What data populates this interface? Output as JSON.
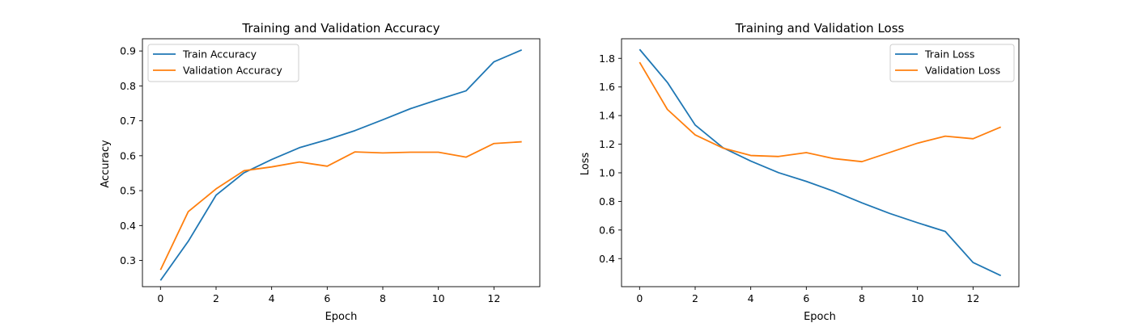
{
  "colors": {
    "train": "#1f77b4",
    "validation": "#ff7f0e"
  },
  "chart_data": [
    {
      "type": "line",
      "title": "Training and Validation Accuracy",
      "xlabel": "Epoch",
      "ylabel": "Accuracy",
      "xlim": [
        -0.65,
        13.65
      ],
      "ylim": [
        0.225,
        0.935
      ],
      "xticks": [
        0,
        2,
        4,
        6,
        8,
        10,
        12
      ],
      "xtick_labels": [
        "0",
        "2",
        "4",
        "6",
        "8",
        "10",
        "12"
      ],
      "yticks": [
        0.3,
        0.4,
        0.5,
        0.6,
        0.7,
        0.8,
        0.9
      ],
      "ytick_labels": [
        "0.3",
        "0.4",
        "0.5",
        "0.6",
        "0.7",
        "0.8",
        "0.9"
      ],
      "legend_position": "upper-left",
      "x": [
        0,
        1,
        2,
        3,
        4,
        5,
        6,
        7,
        8,
        9,
        10,
        11,
        12,
        13
      ],
      "series": [
        {
          "name": "Train Accuracy",
          "color_key": "train",
          "values": [
            0.243,
            0.355,
            0.487,
            0.551,
            0.589,
            0.623,
            0.646,
            0.672,
            0.703,
            0.735,
            0.761,
            0.786,
            0.869,
            0.903
          ]
        },
        {
          "name": "Validation Accuracy",
          "color_key": "validation",
          "values": [
            0.273,
            0.44,
            0.505,
            0.557,
            0.568,
            0.582,
            0.57,
            0.611,
            0.608,
            0.61,
            0.61,
            0.596,
            0.635,
            0.64
          ]
        }
      ]
    },
    {
      "type": "line",
      "title": "Training and Validation Loss",
      "xlabel": "Epoch",
      "ylabel": "Loss",
      "xlim": [
        -0.65,
        13.65
      ],
      "ylim": [
        0.204,
        1.937
      ],
      "xticks": [
        0,
        2,
        4,
        6,
        8,
        10,
        12
      ],
      "xtick_labels": [
        "0",
        "2",
        "4",
        "6",
        "8",
        "10",
        "12"
      ],
      "yticks": [
        0.4,
        0.6,
        0.8,
        1.0,
        1.2,
        1.4,
        1.6,
        1.8
      ],
      "ytick_labels": [
        "0.4",
        "0.6",
        "0.8",
        "1.0",
        "1.2",
        "1.4",
        "1.6",
        "1.8"
      ],
      "legend_position": "upper-right",
      "x": [
        0,
        1,
        2,
        3,
        4,
        5,
        6,
        7,
        8,
        9,
        10,
        11,
        12,
        13
      ],
      "series": [
        {
          "name": "Train Loss",
          "color_key": "train",
          "values": [
            1.863,
            1.632,
            1.334,
            1.175,
            1.082,
            1.001,
            0.94,
            0.87,
            0.79,
            0.716,
            0.651,
            0.59,
            0.373,
            0.281
          ]
        },
        {
          "name": "Validation Loss",
          "color_key": "validation",
          "values": [
            1.773,
            1.443,
            1.265,
            1.173,
            1.121,
            1.114,
            1.141,
            1.099,
            1.078,
            1.142,
            1.207,
            1.256,
            1.238,
            1.32
          ]
        }
      ]
    }
  ]
}
